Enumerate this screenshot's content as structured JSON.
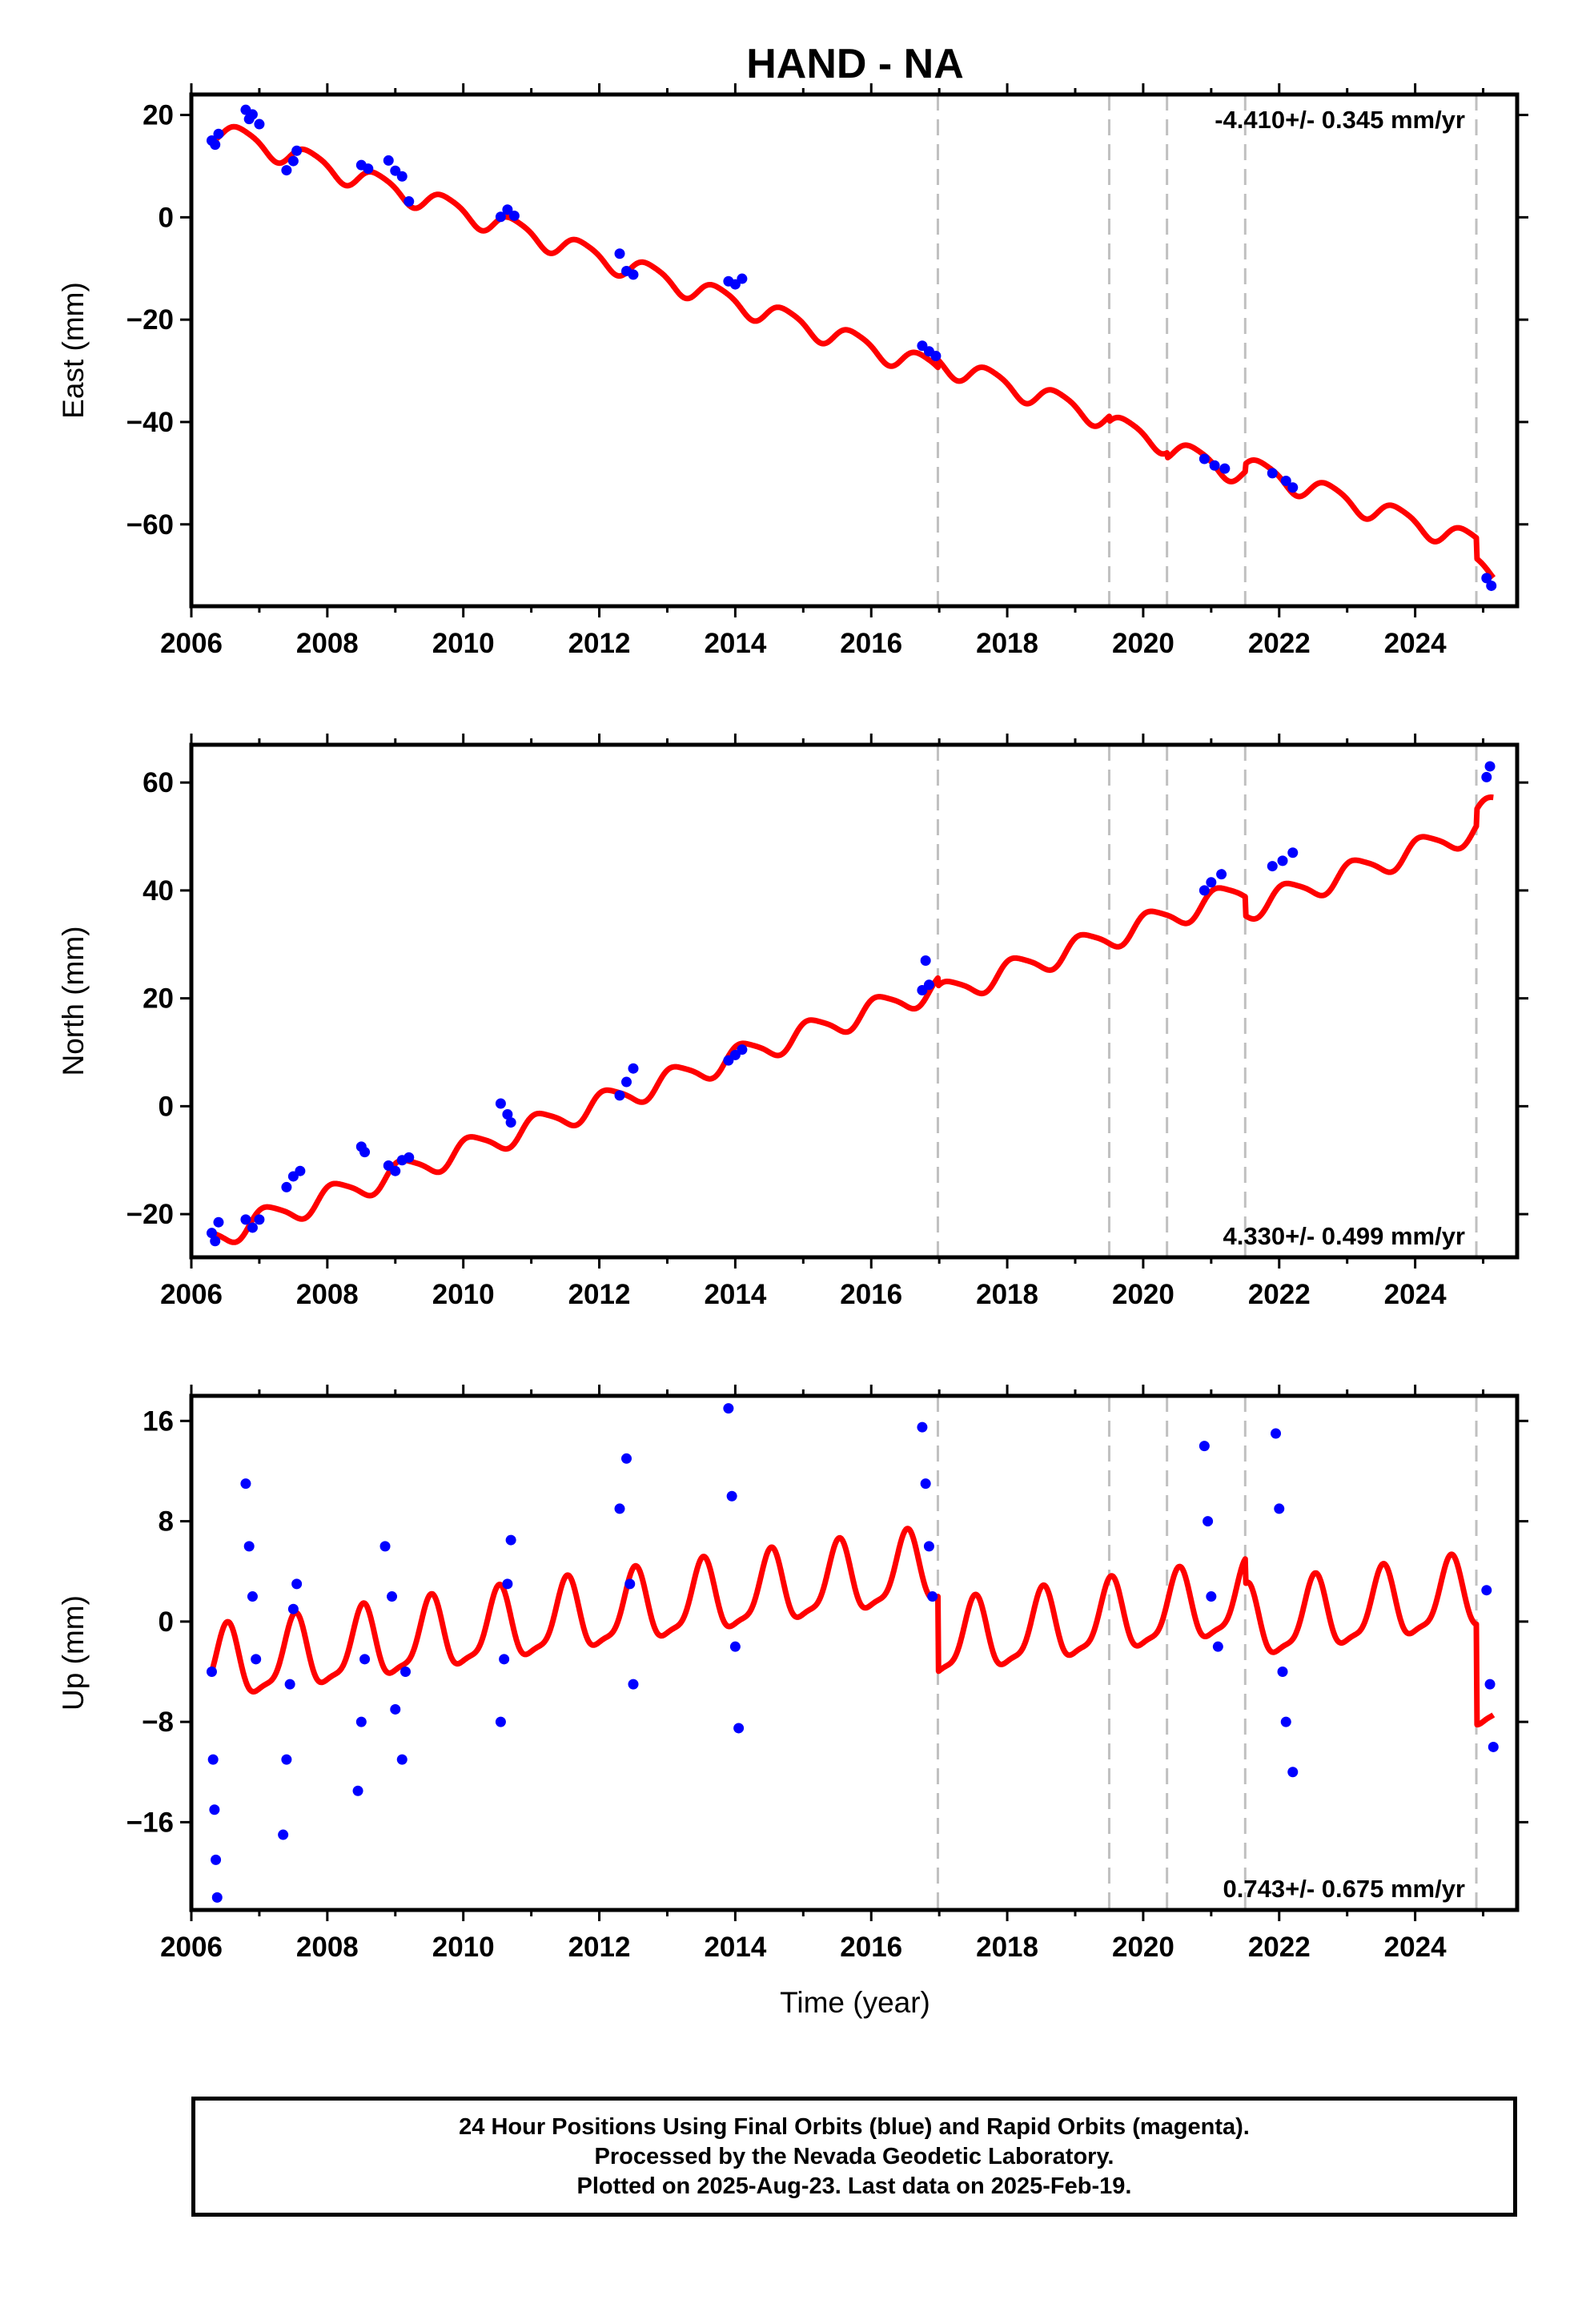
{
  "chart_data": {
    "type": "scatter",
    "title": "HAND - NA",
    "xlabel": "Time (year)",
    "xlim": [
      2006.0,
      2025.5
    ],
    "x_ticks": [
      2006,
      2008,
      2010,
      2012,
      2014,
      2016,
      2018,
      2020,
      2022,
      2024
    ],
    "x_tick_labels": [
      "2006",
      "2008",
      "2010",
      "2012",
      "2014",
      "2016",
      "2018",
      "2020",
      "2022",
      "2024"
    ],
    "equipment_change_epochs": [
      2016.98,
      2019.5,
      2020.35,
      2021.5,
      2024.9
    ],
    "series_colors": {
      "positions": "#0000ff",
      "model": "#ff0000",
      "events": "#c0c0c0"
    },
    "panels": [
      {
        "name": "east",
        "ylabel": "East (mm)",
        "ylim": [
          -76,
          24
        ],
        "y_ticks": [
          20,
          0,
          -20,
          -40,
          -60
        ],
        "y_tick_labels": [
          "20",
          "0",
          "−20",
          "−40",
          "−60"
        ],
        "rate_label": "-4.410+/- 0.345 mm/yr",
        "rate_position": "top-right",
        "rate": -4.41,
        "annual_amplitude": 2.1,
        "annual_phase": 3.2,
        "semiannual_amplitude": 0.4,
        "semiannual_phase": 1.0,
        "offsets": [
          {
            "year": 2016.98,
            "value": 1.5
          },
          {
            "year": 2019.5,
            "value": -1.0
          },
          {
            "year": 2020.35,
            "value": -1.0
          },
          {
            "year": 2021.5,
            "value": 1.5
          },
          {
            "year": 2024.9,
            "value": -4.0
          }
        ],
        "data_points": [
          [
            2006.3,
            15.0
          ],
          [
            2006.35,
            14.2
          ],
          [
            2006.4,
            16.3
          ],
          [
            2006.8,
            21.0
          ],
          [
            2006.85,
            19.2
          ],
          [
            2006.9,
            20.1
          ],
          [
            2007.0,
            18.2
          ],
          [
            2007.4,
            9.2
          ],
          [
            2007.5,
            11.0
          ],
          [
            2007.55,
            13.0
          ],
          [
            2008.5,
            10.2
          ],
          [
            2008.6,
            9.5
          ],
          [
            2008.9,
            11.1
          ],
          [
            2009.0,
            9.1
          ],
          [
            2009.1,
            8.0
          ],
          [
            2009.2,
            3.1
          ],
          [
            2010.55,
            0.1
          ],
          [
            2010.65,
            1.5
          ],
          [
            2010.75,
            0.3
          ],
          [
            2012.3,
            -7.1
          ],
          [
            2012.4,
            -10.5
          ],
          [
            2012.5,
            -11.2
          ],
          [
            2013.9,
            -12.5
          ],
          [
            2014.0,
            -13.1
          ],
          [
            2014.1,
            -12.0
          ],
          [
            2016.75,
            -25.1
          ],
          [
            2016.85,
            -26.2
          ],
          [
            2016.95,
            -27.1
          ],
          [
            2020.9,
            -47.2
          ],
          [
            2021.05,
            -48.5
          ],
          [
            2021.2,
            -49.1
          ],
          [
            2021.9,
            -50.0
          ],
          [
            2022.1,
            -51.5
          ],
          [
            2022.2,
            -52.8
          ],
          [
            2025.05,
            -70.5
          ],
          [
            2025.12,
            -72.0
          ]
        ]
      },
      {
        "name": "north",
        "ylabel": "North (mm)",
        "ylim": [
          -28,
          67
        ],
        "y_ticks": [
          60,
          40,
          20,
          0,
          -20
        ],
        "y_tick_labels": [
          "60",
          "40",
          "20",
          "0",
          "−20"
        ],
        "rate_label": "4.330+/- 0.499 mm/yr",
        "rate_position": "bottom-right",
        "rate": 4.33,
        "annual_amplitude": 2.2,
        "annual_phase": 0.8,
        "semiannual_amplitude": 0.4,
        "semiannual_phase": 2.0,
        "offsets": [
          {
            "year": 2016.98,
            "value": -1.5
          },
          {
            "year": 2021.5,
            "value": -3.5
          },
          {
            "year": 2024.9,
            "value": 3.0
          }
        ],
        "data_points": [
          [
            2006.3,
            -23.5
          ],
          [
            2006.35,
            -25.0
          ],
          [
            2006.4,
            -21.5
          ],
          [
            2006.8,
            -21.0
          ],
          [
            2006.9,
            -22.5
          ],
          [
            2007.0,
            -21.0
          ],
          [
            2007.4,
            -15.0
          ],
          [
            2007.5,
            -13.0
          ],
          [
            2007.6,
            -12.0
          ],
          [
            2008.5,
            -7.5
          ],
          [
            2008.55,
            -8.5
          ],
          [
            2008.9,
            -11.0
          ],
          [
            2009.0,
            -12.0
          ],
          [
            2009.1,
            -10.0
          ],
          [
            2009.2,
            -9.5
          ],
          [
            2010.55,
            0.5
          ],
          [
            2010.65,
            -1.5
          ],
          [
            2010.7,
            -3.0
          ],
          [
            2012.3,
            2.0
          ],
          [
            2012.4,
            4.5
          ],
          [
            2012.5,
            7.0
          ],
          [
            2013.9,
            8.5
          ],
          [
            2014.0,
            9.5
          ],
          [
            2014.1,
            10.5
          ],
          [
            2016.75,
            21.5
          ],
          [
            2016.85,
            22.5
          ],
          [
            2016.8,
            27.0
          ],
          [
            2020.9,
            40.0
          ],
          [
            2021.0,
            41.5
          ],
          [
            2021.15,
            43.0
          ],
          [
            2021.9,
            44.5
          ],
          [
            2022.05,
            45.5
          ],
          [
            2022.2,
            47.0
          ],
          [
            2025.05,
            61.0
          ],
          [
            2025.1,
            63.0
          ]
        ]
      },
      {
        "name": "up",
        "ylabel": "Up (mm)",
        "ylim": [
          -23,
          18
        ],
        "y_ticks": [
          16,
          8,
          0,
          -8,
          -16
        ],
        "y_tick_labels": [
          "16",
          "8",
          "0",
          "−8",
          "−16"
        ],
        "rate_label": "0.743+/- 0.675 mm/yr",
        "rate_position": "bottom-right",
        "rate": 0.743,
        "annual_amplitude": 2.8,
        "annual_phase": 4.6,
        "semiannual_amplitude": 0.8,
        "semiannual_phase": 1.0,
        "offsets": [
          {
            "year": 2016.98,
            "value": -6.0
          },
          {
            "year": 2021.5,
            "value": -2.0
          },
          {
            "year": 2024.9,
            "value": -8.0
          }
        ],
        "data_points": [
          [
            2006.3,
            -4.0
          ],
          [
            2006.32,
            -11.0
          ],
          [
            2006.34,
            -15.0
          ],
          [
            2006.36,
            -19.0
          ],
          [
            2006.38,
            -22.0
          ],
          [
            2006.8,
            11.0
          ],
          [
            2006.85,
            6.0
          ],
          [
            2006.9,
            2.0
          ],
          [
            2006.95,
            -3.0
          ],
          [
            2007.4,
            -11.0
          ],
          [
            2007.45,
            -5.0
          ],
          [
            2007.5,
            1.0
          ],
          [
            2007.55,
            3.0
          ],
          [
            2007.35,
            -17.0
          ],
          [
            2008.45,
            -13.5
          ],
          [
            2008.5,
            -8.0
          ],
          [
            2008.55,
            -3.0
          ],
          [
            2008.85,
            6.0
          ],
          [
            2008.95,
            2.0
          ],
          [
            2009.0,
            -7.0
          ],
          [
            2009.1,
            -11.0
          ],
          [
            2009.15,
            -4.0
          ],
          [
            2010.55,
            -8.0
          ],
          [
            2010.6,
            -3.0
          ],
          [
            2010.65,
            3.0
          ],
          [
            2010.7,
            6.5
          ],
          [
            2012.3,
            9.0
          ],
          [
            2012.4,
            13.0
          ],
          [
            2012.45,
            3.0
          ],
          [
            2012.5,
            -5.0
          ],
          [
            2013.9,
            17.0
          ],
          [
            2013.95,
            10.0
          ],
          [
            2014.0,
            -2.0
          ],
          [
            2014.05,
            -8.5
          ],
          [
            2016.75,
            15.5
          ],
          [
            2016.8,
            11.0
          ],
          [
            2016.85,
            6.0
          ],
          [
            2016.9,
            2.0
          ],
          [
            2020.9,
            14.0
          ],
          [
            2020.95,
            8.0
          ],
          [
            2021.0,
            2.0
          ],
          [
            2021.1,
            -2.0
          ],
          [
            2021.95,
            15.0
          ],
          [
            2022.0,
            9.0
          ],
          [
            2022.05,
            -4.0
          ],
          [
            2022.1,
            -8.0
          ],
          [
            2022.2,
            -12.0
          ],
          [
            2025.05,
            2.5
          ],
          [
            2025.1,
            -5.0
          ],
          [
            2025.15,
            -10.0
          ]
        ]
      }
    ]
  },
  "footer": {
    "line1": "24 Hour Positions Using Final Orbits (blue) and Rapid Orbits (magenta).",
    "line2": "Processed by the Nevada Geodetic Laboratory.",
    "line3": "Plotted on 2025-Aug-23. Last data on 2025-Feb-19."
  }
}
